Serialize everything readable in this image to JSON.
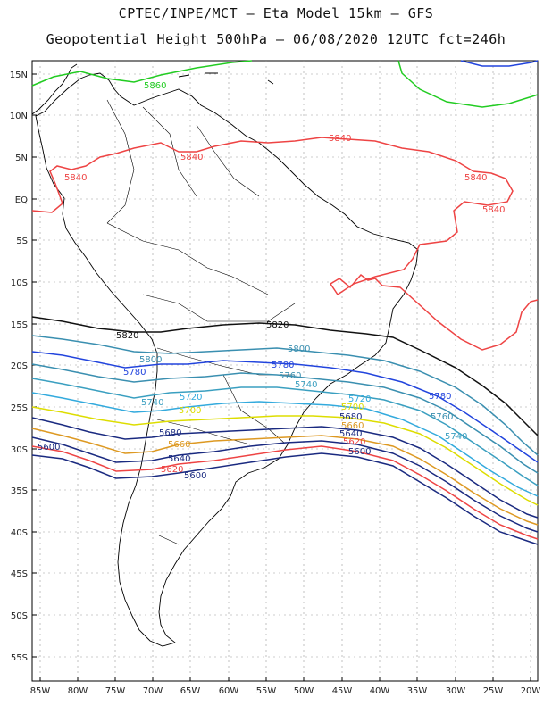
{
  "header": {
    "title_line1": "CPTEC/INPE/MCT –  Eta Model 15km – GFS",
    "title_line2": "Geopotential Height 500hPa – 06/08/2020 12UTC fct=246h"
  },
  "axes": {
    "lat_labels": [
      "15N",
      "10N",
      "5N",
      "EQ",
      "5S",
      "10S",
      "15S",
      "20S",
      "25S",
      "30S",
      "35S",
      "40S",
      "45S",
      "50S",
      "55S"
    ],
    "lon_labels": [
      "85W",
      "80W",
      "75W",
      "70W",
      "65W",
      "60W",
      "55W",
      "50W",
      "45W",
      "40W",
      "35W",
      "30W",
      "25W",
      "20W"
    ]
  },
  "contour_labels": [
    {
      "text": "5860",
      "color": "#22cc22"
    },
    {
      "text": "5840",
      "color": "#ee4444"
    },
    {
      "text": "5840",
      "color": "#ee4444"
    },
    {
      "text": "5840",
      "color": "#ee4444"
    },
    {
      "text": "5840",
      "color": "#ee4444"
    },
    {
      "text": "5840",
      "color": "#ee4444"
    },
    {
      "text": "5820",
      "color": "#111111"
    },
    {
      "text": "5820",
      "color": "#111111"
    },
    {
      "text": "5800",
      "color": "#3a8fb0"
    },
    {
      "text": "5800",
      "color": "#3a8fb0"
    },
    {
      "text": "5780",
      "color": "#2244dd"
    },
    {
      "text": "5780",
      "color": "#2244dd"
    },
    {
      "text": "5780",
      "color": "#2244dd"
    },
    {
      "text": "5760",
      "color": "#3a8fb0"
    },
    {
      "text": "5760",
      "color": "#3a8fb0"
    },
    {
      "text": "5740",
      "color": "#3a9fc0"
    },
    {
      "text": "5740",
      "color": "#3a9fc0"
    },
    {
      "text": "5740",
      "color": "#3a9fc0"
    },
    {
      "text": "5720",
      "color": "#33aadd"
    },
    {
      "text": "5720",
      "color": "#33aadd"
    },
    {
      "text": "5700",
      "color": "#dddd00"
    },
    {
      "text": "5700",
      "color": "#dddd00"
    },
    {
      "text": "5680",
      "color": "#1a2a80"
    },
    {
      "text": "5680",
      "color": "#1a2a80"
    },
    {
      "text": "5660",
      "color": "#dd9922"
    },
    {
      "text": "5660",
      "color": "#dd9922"
    },
    {
      "text": "5640",
      "color": "#1a2a80"
    },
    {
      "text": "5640",
      "color": "#1a2a80"
    },
    {
      "text": "5620",
      "color": "#ee4444"
    },
    {
      "text": "5620",
      "color": "#ee4444"
    },
    {
      "text": "5600",
      "color": "#1a2a80"
    },
    {
      "text": "5600",
      "color": "#1a2a80"
    },
    {
      "text": "5600",
      "color": "#1a2a80"
    }
  ],
  "colors": {
    "frame": "#000000",
    "grid": "#999999",
    "coast": "#000000"
  }
}
